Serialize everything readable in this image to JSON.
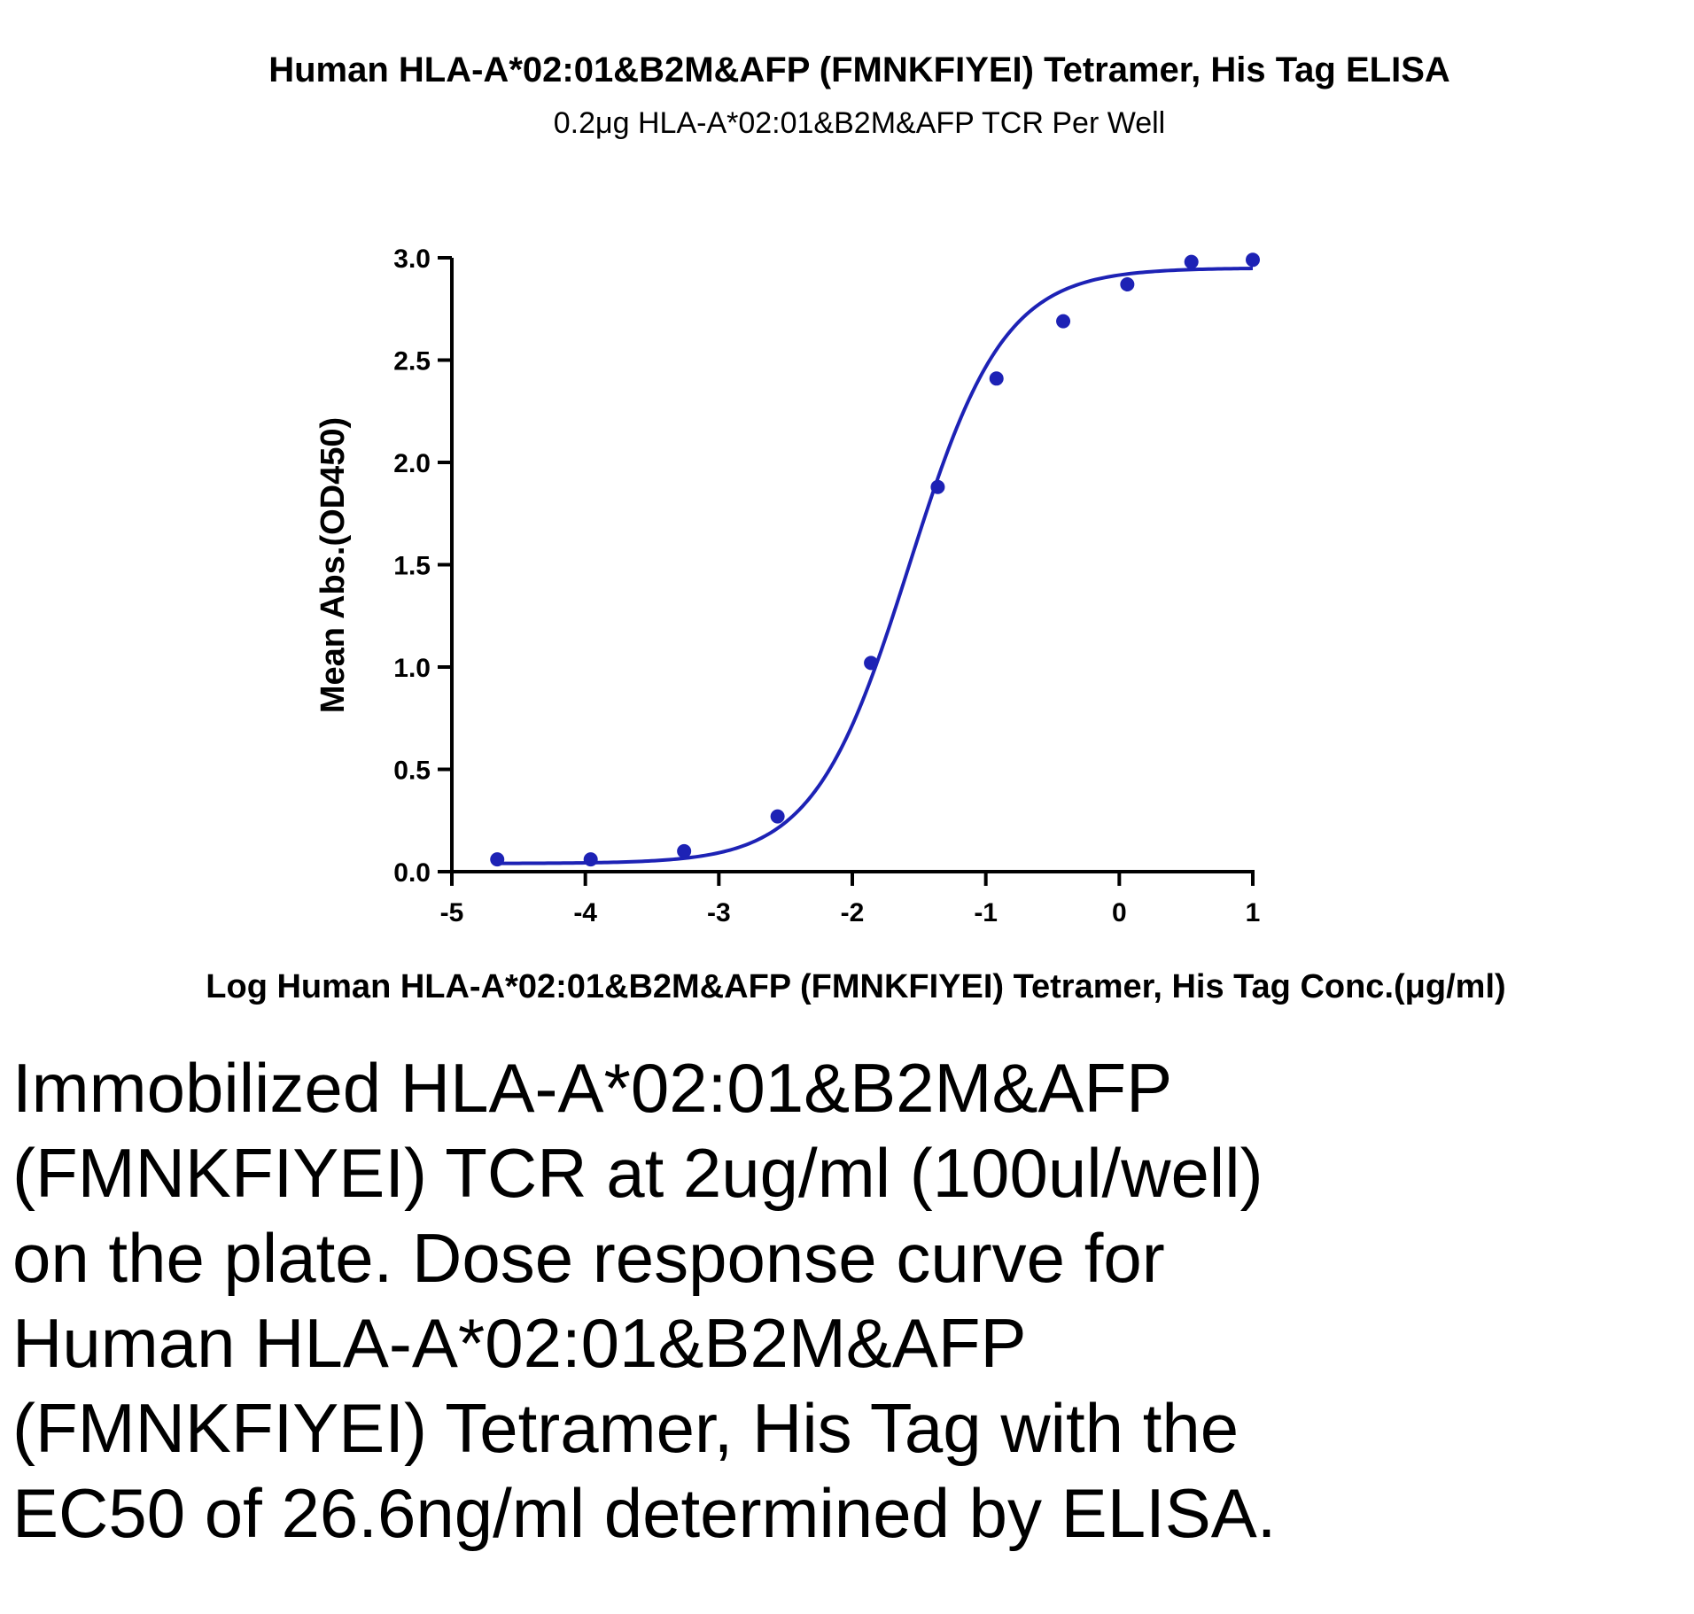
{
  "chart_data": {
    "type": "scatter",
    "title": "Human HLA-A*02:01&B2M&AFP (FMNKFIYEI) Tetramer, His Tag ELISA",
    "subtitle": "0.2μg HLA-A*02:01&B2M&AFP TCR Per Well",
    "xlabel": "Log Human HLA-A*02:01&B2M&AFP (FMNKFIYEI) Tetramer, His Tag Conc.(μg/ml)",
    "ylabel": "Mean Abs.(OD450)",
    "xlim": [
      -5,
      1
    ],
    "ylim": [
      0,
      3
    ],
    "x_ticks": [
      "-5",
      "-4",
      "-3",
      "-2",
      "-1",
      "0",
      "1"
    ],
    "y_ticks": [
      "0.0",
      "0.5",
      "1.0",
      "1.5",
      "2.0",
      "2.5",
      "3.0"
    ],
    "grid": false,
    "legend": "none",
    "series": [
      {
        "points": [
          {
            "x": -4.66,
            "y": 0.06
          },
          {
            "x": -3.96,
            "y": 0.06
          },
          {
            "x": -3.26,
            "y": 0.1
          },
          {
            "x": -2.56,
            "y": 0.27
          },
          {
            "x": -1.86,
            "y": 1.02
          },
          {
            "x": -1.36,
            "y": 1.88
          },
          {
            "x": -0.92,
            "y": 2.41
          },
          {
            "x": -0.42,
            "y": 2.69
          },
          {
            "x": 0.06,
            "y": 2.87
          },
          {
            "x": 0.54,
            "y": 2.98
          },
          {
            "x": 1.0,
            "y": 2.99
          }
        ],
        "fit_curve": {
          "model": "4PL",
          "bottom": 0.04,
          "top": 2.95,
          "log_ec50": -1.575,
          "hill_slope": 1.22
        },
        "color": "#1d22b5"
      }
    ]
  },
  "caption": "Immobilized HLA-A*02:01&B2M&AFP (FMNKFIYEI) TCR at 2ug/ml (100ul/well) on the plate. Dose response curve for Human HLA-A*02:01&B2M&AFP (FMNKFIYEI) Tetramer, His Tag with the EC50 of 26.6ng/ml determined by ELISA."
}
